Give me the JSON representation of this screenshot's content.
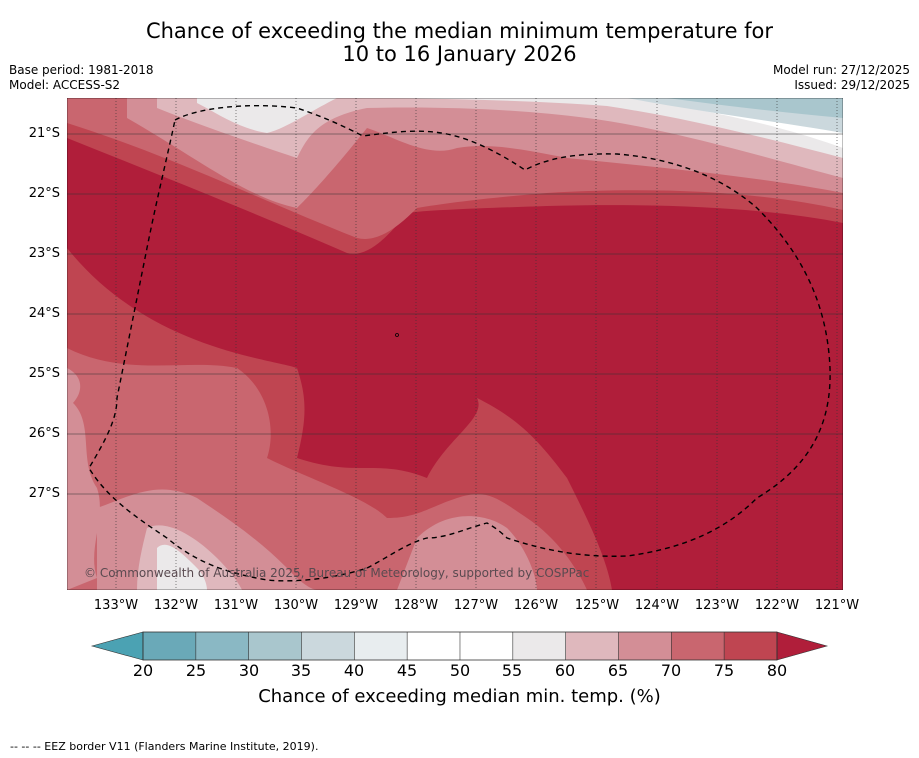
{
  "title": {
    "line1": "Chance of exceeding the median minimum temperature for",
    "line2": "10 to 16 January 2026"
  },
  "meta": {
    "base_period": "Base period: 1981-2018",
    "model": "Model: ACCESS-S2",
    "model_run": "Model run: 27/12/2025",
    "issued": "Issued: 29/12/2025"
  },
  "map": {
    "latitude_labels": [
      "21°S",
      "22°S",
      "23°S",
      "24°S",
      "25°S",
      "26°S",
      "27°S"
    ],
    "longitude_labels": [
      "133°W",
      "132°W",
      "131°W",
      "130°W",
      "129°W",
      "128°W",
      "127°W",
      "126°W",
      "125°W",
      "124°W",
      "123°W",
      "122°W",
      "121°W"
    ],
    "copyright": "© Commonwealth of Australia 2025, Bureau of Meteorology, supported by COSPPac"
  },
  "colorbar": {
    "ticks": [
      "20",
      "25",
      "30",
      "35",
      "40",
      "45",
      "50",
      "55",
      "60",
      "65",
      "70",
      "75",
      "80"
    ],
    "colors": [
      "#6aa9b8",
      "#8ab8c4",
      "#a9c6cd",
      "#cbd8dd",
      "#e8edef",
      "#ffffff",
      "#ffffff",
      "#ebe9ea",
      "#dfb8bd",
      "#d38e96",
      "#c9666f",
      "#bf4551"
    ],
    "under_color": "#4ba2b3",
    "over_color": "#b01e3a",
    "title": "Chance of exceeding median min. temp. (%)"
  },
  "footer": {
    "legend": "--  --  -- EEZ border V11 (Flanders Marine Institute, 2019)."
  }
}
